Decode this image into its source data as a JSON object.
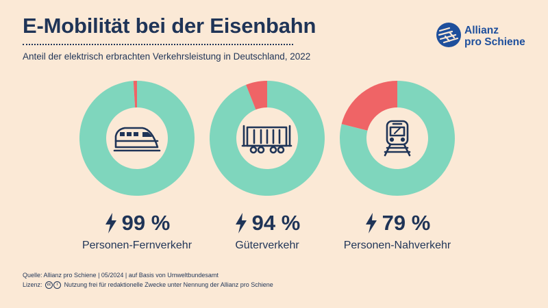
{
  "header": {
    "title": "E-Mobilität bei der Eisenbahn",
    "subtitle": "Anteil der elektrisch erbrachten Verkehrsleistung in Deutschland, 2022"
  },
  "logo": {
    "line1": "Allianz",
    "line2": "pro Schiene"
  },
  "colors": {
    "background": "#fbe9d6",
    "electric": "#7fd6bd",
    "non_electric": "#ef6466",
    "text": "#1f3457",
    "brand": "#1e4f9c"
  },
  "chart_data": {
    "type": "pie",
    "title": "E-Mobilität bei der Eisenbahn",
    "subtitle": "Anteil der elektrisch erbrachten Verkehrsleistung in Deutschland, 2022",
    "unit": "%",
    "charts": [
      {
        "category": "Personen-Fernverkehr",
        "electric_share": 99,
        "value_label": "99 %",
        "icon": "high-speed-train-icon"
      },
      {
        "category": "Güterverkehr",
        "electric_share": 94,
        "value_label": "94 %",
        "icon": "freight-wagon-icon"
      },
      {
        "category": "Personen-Nahverkehr",
        "electric_share": 79,
        "value_label": "79 %",
        "icon": "regional-train-icon"
      }
    ]
  },
  "footer": {
    "source": "Quelle: Allianz pro Schiene | 05/2024 | auf Basis von Umweltbundesamt",
    "license_label": "Lizenz:",
    "license_text": "Nutzung frei für redaktionelle Zwecke unter Nennung der Allianz pro Schiene"
  }
}
